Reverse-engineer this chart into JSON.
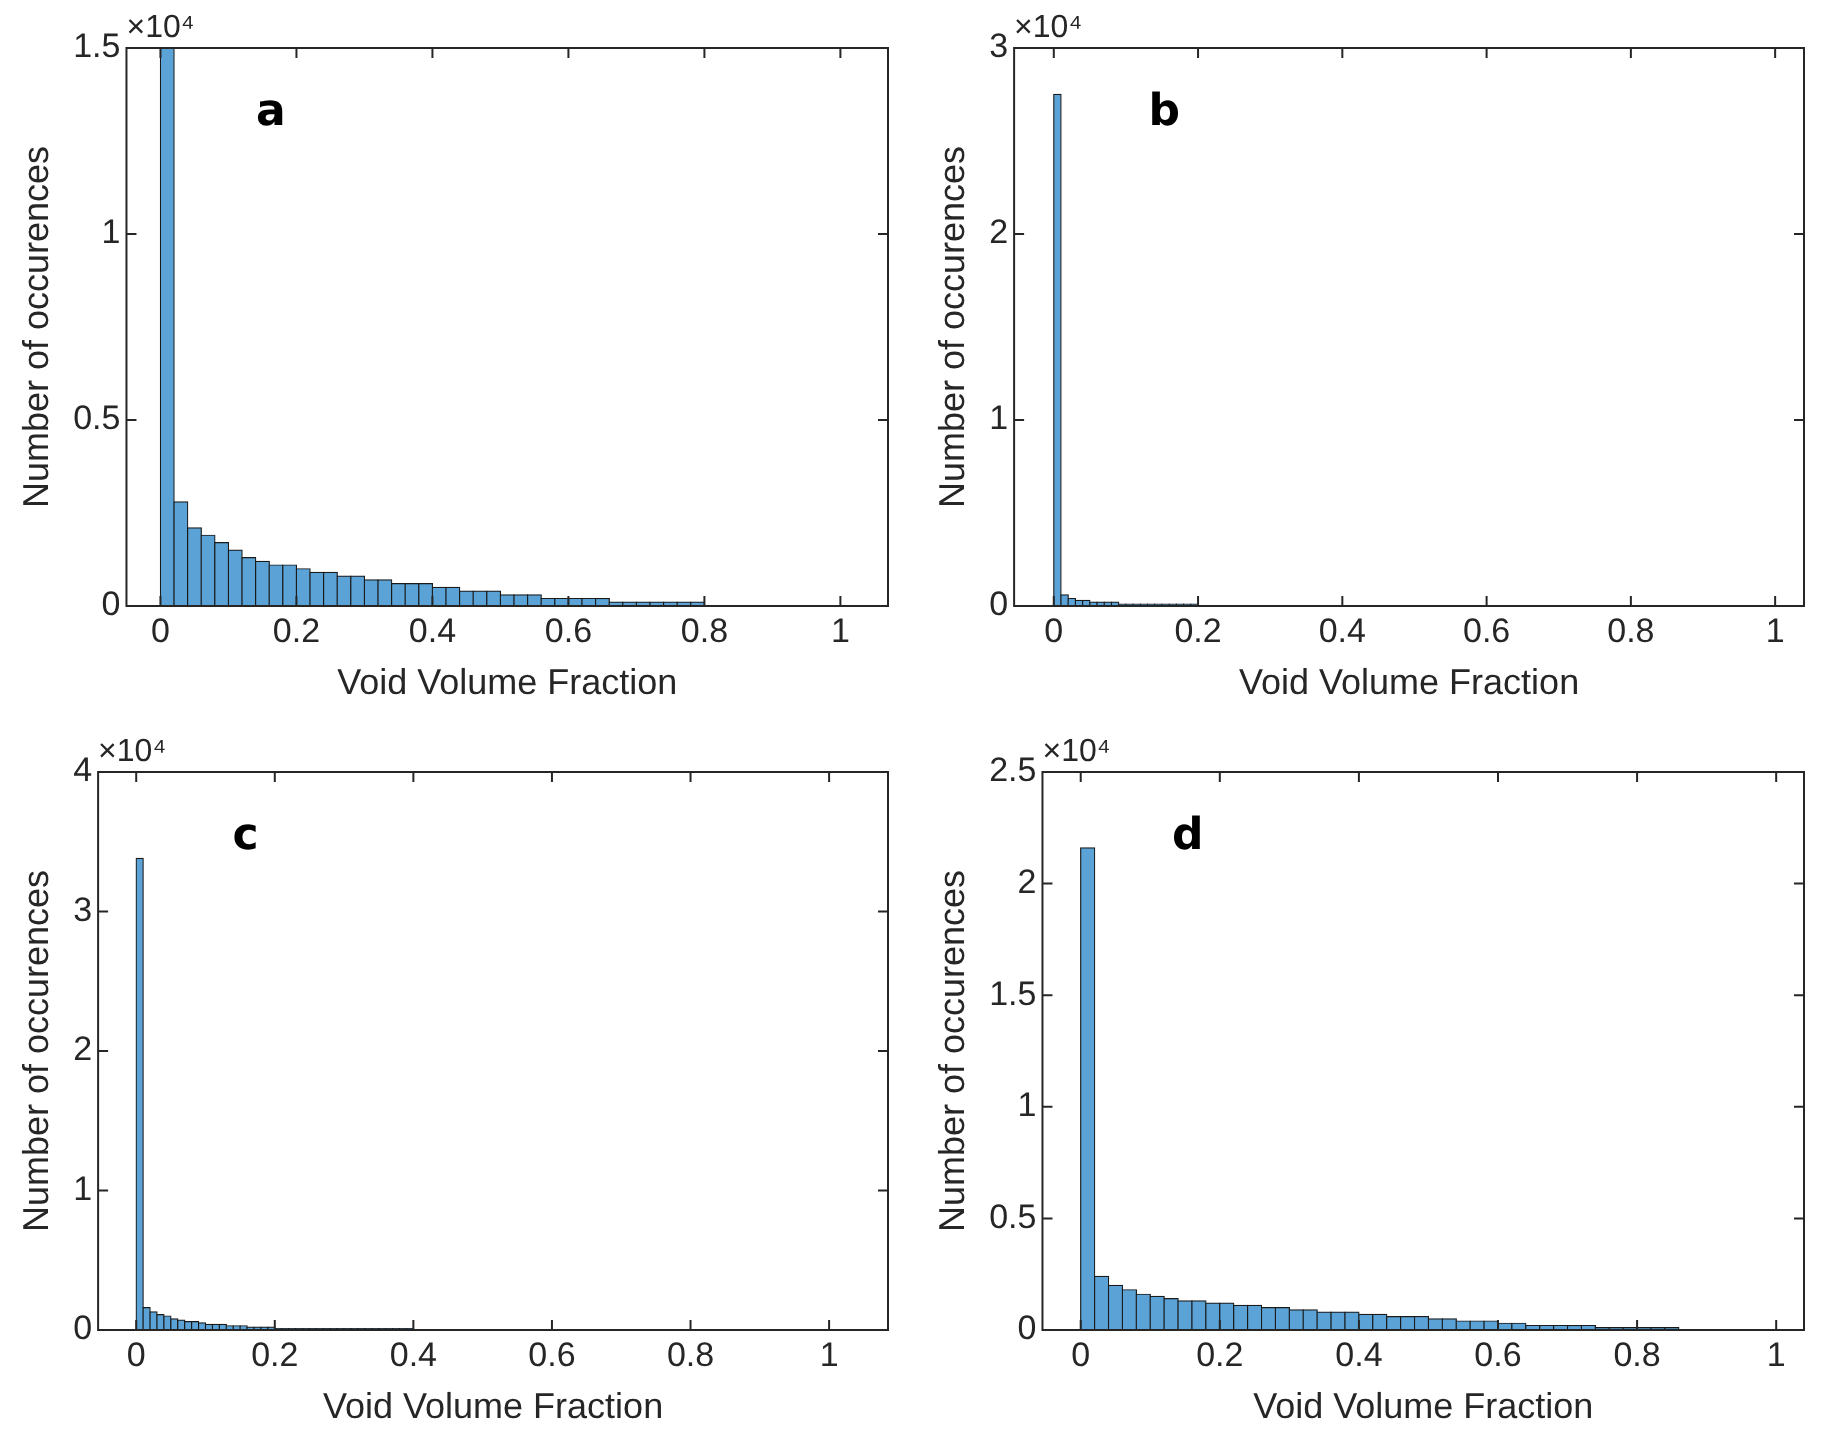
{
  "chart_data": [
    {
      "type": "histogram",
      "xlabel": "Void Volume Fraction",
      "ylabel": "Number of occurences",
      "color": "#5ba3d6",
      "annotations": [
        "×10⁴",
        "a"
      ],
      "bins": [
        0,
        0.02,
        0.04,
        0.06,
        0.08,
        0.1,
        0.12,
        0.14,
        0.16,
        0.18,
        0.2,
        0.22,
        0.24,
        0.26,
        0.28,
        0.3,
        0.32,
        0.34,
        0.36,
        0.38,
        0.4,
        0.42,
        0.44,
        0.46,
        0.48,
        0.5,
        0.52,
        0.54,
        0.56,
        0.58,
        0.6,
        0.62,
        0.64,
        0.66,
        0.68,
        0.7,
        0.72,
        0.74,
        0.76,
        0.78,
        0.8,
        0.82,
        0.84,
        0.86,
        0.88,
        0.9,
        0.92,
        0.94,
        0.96,
        0.98,
        1,
        1.02
      ],
      "values": [
        1.5,
        0.28,
        0.21,
        0.19,
        0.17,
        0.15,
        0.13,
        0.12,
        0.11,
        0.11,
        0.1,
        0.09,
        0.09,
        0.08,
        0.08,
        0.07,
        0.07,
        0.06,
        0.06,
        0.06,
        0.05,
        0.05,
        0.04,
        0.04,
        0.04,
        0.03,
        0.03,
        0.03,
        0.02,
        0.02,
        0.02,
        0.02,
        0.02,
        0.01,
        0.01,
        0.01,
        0.01,
        0.01,
        0.01,
        0.01,
        0,
        0,
        0,
        0,
        0,
        0,
        0,
        0,
        0,
        0,
        0
      ],
      "xlim": [
        -0.05,
        1.07
      ],
      "xticks": [
        0,
        0.2,
        0.4,
        0.6,
        0.8,
        1
      ],
      "ylim": [
        0,
        1.5
      ],
      "yticks": [
        0,
        0.5,
        1,
        1.5
      ]
    },
    {
      "type": "histogram",
      "xlabel": "Void Volume Fraction",
      "ylabel": "Number of occurences",
      "color": "#5ba3d6",
      "annotations": [
        "×10⁴",
        "b"
      ],
      "bins": [
        0,
        0.01,
        0.02,
        0.03,
        0.04,
        0.05,
        0.06,
        0.07,
        0.08,
        0.09,
        0.1,
        0.11,
        0.12,
        0.13,
        0.14,
        0.15,
        0.16,
        0.17,
        0.18,
        0.19,
        0.2,
        0.21,
        0.22,
        0.23,
        0.24,
        0.25,
        0.26,
        0.27,
        0.28,
        0.29,
        0.3,
        0.31,
        0.32,
        0.33,
        0.34,
        0.35,
        0.36,
        0.37,
        0.38,
        0.39,
        0.4,
        0.41,
        0.42,
        0.43,
        0.44,
        0.45,
        0.46,
        0.47,
        0.48,
        0.49,
        0.5,
        0.51,
        0.52,
        0.53,
        0.54,
        0.55,
        0.56,
        0.57,
        0.58,
        0.59,
        0.6,
        0.61,
        0.62,
        0.63,
        0.64,
        0.65,
        0.66,
        0.67,
        0.68,
        0.69,
        0.7,
        0.71,
        0.72,
        0.73,
        0.74,
        0.75,
        0.76,
        0.77,
        0.78,
        0.79,
        0.8,
        0.81,
        0.82,
        0.83,
        0.84,
        0.85,
        0.86,
        0.87,
        0.88,
        0.89,
        0.9,
        0.91,
        0.92,
        0.93,
        0.94,
        0.95,
        0.96,
        0.97,
        0.98,
        0.99,
        1,
        1.01,
        1.02,
        1.03
      ],
      "values": [
        2.75,
        0.06,
        0.04,
        0.03,
        0.03,
        0.02,
        0.02,
        0.02,
        0.02,
        0.01,
        0.01,
        0.01,
        0.01,
        0.01,
        0.01,
        0.01,
        0.01,
        0.01,
        0.01,
        0.01,
        0,
        0,
        0,
        0,
        0,
        0,
        0,
        0,
        0,
        0,
        0,
        0,
        0,
        0,
        0,
        0,
        0,
        0,
        0,
        0,
        0,
        0,
        0,
        0,
        0,
        0,
        0,
        0,
        0,
        0,
        0,
        0,
        0,
        0,
        0,
        0,
        0,
        0,
        0,
        0,
        0,
        0,
        0,
        0,
        0,
        0,
        0,
        0,
        0,
        0,
        0,
        0,
        0,
        0,
        0,
        0,
        0,
        0,
        0,
        0,
        0,
        0,
        0,
        0,
        0,
        0,
        0,
        0,
        0,
        0,
        0,
        0,
        0,
        0,
        0,
        0,
        0,
        0,
        0,
        0,
        0,
        0,
        0
      ],
      "xlim": [
        -0.055,
        1.04
      ],
      "xticks": [
        0,
        0.2,
        0.4,
        0.6,
        0.8,
        1
      ],
      "ylim": [
        0,
        3
      ],
      "yticks": [
        0,
        1,
        2,
        3
      ]
    },
    {
      "type": "histogram",
      "xlabel": "Void Volume Fraction",
      "ylabel": "Number of occurences",
      "color": "#5ba3d6",
      "annotations": [
        "×10⁴",
        "c"
      ],
      "bins": [
        0,
        0.01,
        0.02,
        0.03,
        0.04,
        0.05,
        0.06,
        0.07,
        0.08,
        0.09,
        0.1,
        0.11,
        0.12,
        0.13,
        0.14,
        0.15,
        0.16,
        0.17,
        0.18,
        0.19,
        0.2,
        0.21,
        0.22,
        0.23,
        0.24,
        0.25,
        0.26,
        0.27,
        0.28,
        0.29,
        0.3,
        0.31,
        0.32,
        0.33,
        0.34,
        0.35,
        0.36,
        0.37,
        0.38,
        0.39,
        0.4,
        0.41,
        0.42,
        0.43,
        0.44,
        0.45,
        0.46,
        0.47,
        0.48,
        0.49,
        0.5,
        0.51,
        0.52,
        0.53,
        0.54,
        0.55,
        0.56,
        0.57,
        0.58,
        0.59,
        0.6,
        0.61,
        0.62,
        0.63,
        0.64,
        0.65,
        0.66,
        0.67,
        0.68,
        0.69,
        0.7,
        0.71,
        0.72,
        0.73,
        0.74,
        0.75,
        0.76,
        0.77,
        0.78,
        0.79,
        0.8,
        0.81,
        0.82,
        0.83,
        0.84,
        0.85,
        0.86,
        0.87,
        0.88,
        0.89,
        0.9,
        0.91,
        0.92,
        0.93,
        0.94,
        0.95,
        0.96,
        0.97,
        0.98,
        0.99,
        1,
        1.01,
        1.02,
        1.03
      ],
      "values": [
        3.38,
        0.16,
        0.13,
        0.11,
        0.1,
        0.08,
        0.07,
        0.06,
        0.06,
        0.05,
        0.04,
        0.04,
        0.04,
        0.03,
        0.03,
        0.03,
        0.02,
        0.02,
        0.02,
        0.02,
        0.01,
        0.01,
        0.01,
        0.01,
        0.01,
        0.01,
        0.01,
        0.01,
        0.01,
        0.01,
        0.01,
        0.01,
        0.01,
        0.01,
        0.01,
        0.01,
        0.01,
        0.01,
        0.01,
        0.01,
        0,
        0,
        0,
        0,
        0,
        0,
        0,
        0,
        0,
        0,
        0,
        0,
        0,
        0,
        0,
        0,
        0,
        0,
        0,
        0,
        0,
        0,
        0,
        0,
        0,
        0,
        0,
        0,
        0,
        0,
        0,
        0,
        0,
        0,
        0,
        0,
        0,
        0,
        0,
        0,
        0,
        0,
        0,
        0,
        0,
        0,
        0,
        0,
        0,
        0,
        0,
        0,
        0,
        0,
        0,
        0,
        0,
        0,
        0,
        0,
        0,
        0,
        0
      ],
      "xlim": [
        -0.055,
        1.085
      ],
      "xticks": [
        0,
        0.2,
        0.4,
        0.6,
        0.8,
        1
      ],
      "ylim": [
        0,
        4
      ],
      "yticks": [
        0,
        1,
        2,
        3,
        4
      ]
    },
    {
      "type": "histogram",
      "xlabel": "Void Volume Fraction",
      "ylabel": "Number of occurences",
      "color": "#5ba3d6",
      "annotations": [
        "×10⁴",
        "d"
      ],
      "bins": [
        0,
        0.02,
        0.04,
        0.06,
        0.08,
        0.1,
        0.12,
        0.14,
        0.16,
        0.18,
        0.2,
        0.22,
        0.24,
        0.26,
        0.28,
        0.3,
        0.32,
        0.34,
        0.36,
        0.38,
        0.4,
        0.42,
        0.44,
        0.46,
        0.48,
        0.5,
        0.52,
        0.54,
        0.56,
        0.58,
        0.6,
        0.62,
        0.64,
        0.66,
        0.68,
        0.7,
        0.72,
        0.74,
        0.76,
        0.78,
        0.8,
        0.82,
        0.84,
        0.86,
        0.88,
        0.9,
        0.92,
        0.94,
        0.96,
        0.98,
        1,
        1.02
      ],
      "values": [
        2.16,
        0.24,
        0.2,
        0.18,
        0.16,
        0.15,
        0.14,
        0.13,
        0.13,
        0.12,
        0.12,
        0.11,
        0.11,
        0.1,
        0.1,
        0.09,
        0.09,
        0.08,
        0.08,
        0.08,
        0.07,
        0.07,
        0.06,
        0.06,
        0.06,
        0.05,
        0.05,
        0.04,
        0.04,
        0.04,
        0.03,
        0.03,
        0.02,
        0.02,
        0.02,
        0.02,
        0.02,
        0.01,
        0.01,
        0.01,
        0.01,
        0.01,
        0.01,
        0,
        0,
        0,
        0,
        0,
        0,
        0,
        0
      ],
      "xlim": [
        -0.055,
        1.04
      ],
      "xticks": [
        0,
        0.2,
        0.4,
        0.6,
        0.8,
        1
      ],
      "ylim": [
        0,
        2.5
      ],
      "yticks": [
        0,
        0.5,
        1,
        1.5,
        2,
        2.5
      ]
    }
  ]
}
